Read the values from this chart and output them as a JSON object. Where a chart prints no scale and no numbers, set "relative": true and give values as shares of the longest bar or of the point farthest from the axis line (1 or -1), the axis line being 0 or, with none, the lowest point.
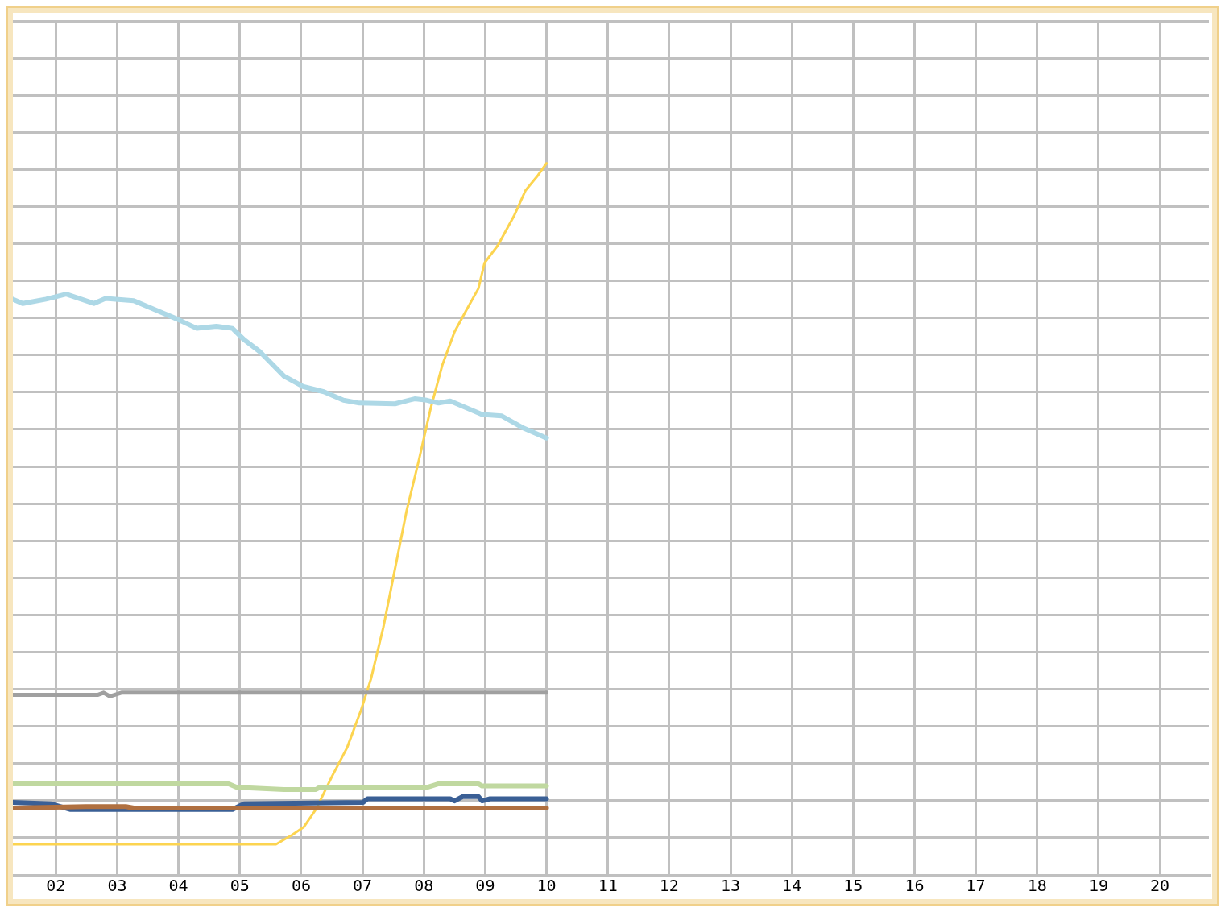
{
  "chart_data": {
    "type": "line",
    "relative": true,
    "grid": true,
    "legend": false,
    "marker": "none",
    "line_style": "solid",
    "xlim": [
      1.3,
      20.8
    ],
    "xticks": [
      {
        "value": 2,
        "label": "02"
      },
      {
        "value": 3,
        "label": "03"
      },
      {
        "value": 4,
        "label": "04"
      },
      {
        "value": 5,
        "label": "05"
      },
      {
        "value": 6,
        "label": "06"
      },
      {
        "value": 7,
        "label": "07"
      },
      {
        "value": 8,
        "label": "08"
      },
      {
        "value": 9,
        "label": "09"
      },
      10,
      11,
      12,
      13,
      14,
      15,
      16,
      17,
      18,
      19,
      20
    ],
    "series": [
      {
        "color": "#add8e6",
        "x": [
          1.3,
          1.46,
          1.84,
          2.17,
          2.62,
          2.81,
          3.27,
          3.65,
          3.98,
          4.3,
          4.62,
          4.88,
          5.07,
          5.33,
          5.72,
          6.04,
          6.37,
          6.69,
          6.95,
          7.53,
          7.85,
          8.05,
          8.24,
          8.43,
          8.95,
          9.27,
          9.6,
          10
        ],
        "values": [
          0.809,
          0.803,
          0.809,
          0.816,
          0.803,
          0.81,
          0.807,
          0.793,
          0.781,
          0.768,
          0.771,
          0.768,
          0.752,
          0.735,
          0.701,
          0.686,
          0.679,
          0.667,
          0.663,
          0.662,
          0.669,
          0.667,
          0.663,
          0.666,
          0.647,
          0.645,
          0.629,
          0.614
        ]
      },
      {
        "color": "#a0a0a0",
        "x": [
          1.3,
          2.68,
          2.78,
          2.88,
          3.07,
          10
        ],
        "values": [
          0.253,
          0.253,
          0.256,
          0.251,
          0.256,
          0.256
        ]
      },
      {
        "color": "#c0d8a0",
        "x": [
          1.3,
          4.82,
          4.95,
          5.72,
          6.24,
          6.3,
          8.05,
          8.24,
          8.89,
          8.95,
          10
        ],
        "values": [
          0.128,
          0.128,
          0.123,
          0.12,
          0.12,
          0.123,
          0.123,
          0.128,
          0.128,
          0.125,
          0.125
        ]
      },
      {
        "color": "#b07040",
        "x": [
          1.3,
          2.49,
          3.14,
          3.27,
          10
        ],
        "values": [
          0.094,
          0.096,
          0.096,
          0.094,
          0.094
        ]
      },
      {
        "color": "#3a5f95",
        "x": [
          1.3,
          1.91,
          2.23,
          4.88,
          5.07,
          7.01,
          7.08,
          8.43,
          8.5,
          8.63,
          8.89,
          8.95,
          9.08,
          10
        ],
        "values": [
          0.102,
          0.1,
          0.092,
          0.092,
          0.1,
          0.102,
          0.107,
          0.107,
          0.104,
          0.11,
          0.11,
          0.104,
          0.107,
          0.107
        ]
      },
      {
        "color": "#fcd450",
        "x": [
          1.3,
          5.59,
          5.85,
          6.04,
          6.24,
          6.5,
          6.75,
          6.97,
          7.14,
          7.34,
          7.53,
          7.72,
          7.92,
          8.11,
          8.3,
          8.5,
          8.69,
          8.89,
          8.99,
          9.21,
          9.47,
          9.66,
          9.86,
          10
        ],
        "values": [
          0.043,
          0.043,
          0.056,
          0.067,
          0.092,
          0.138,
          0.179,
          0.23,
          0.276,
          0.348,
          0.43,
          0.512,
          0.583,
          0.655,
          0.716,
          0.763,
          0.793,
          0.824,
          0.86,
          0.885,
          0.926,
          0.962,
          0.983,
          1
        ]
      }
    ]
  }
}
